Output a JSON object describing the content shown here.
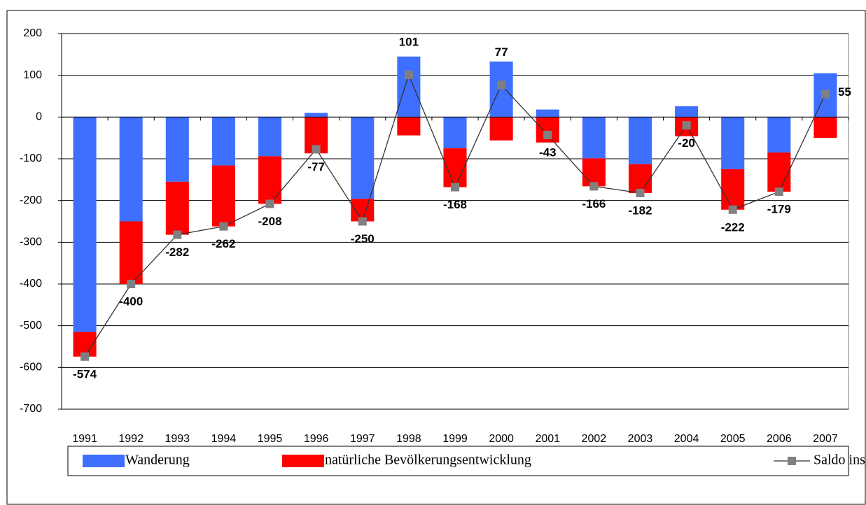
{
  "chart_data": {
    "type": "bar",
    "stacked": true,
    "categories": [
      "1991",
      "1992",
      "1993",
      "1994",
      "1995",
      "1996",
      "1997",
      "1998",
      "1999",
      "2000",
      "2001",
      "2002",
      "2003",
      "2004",
      "2005",
      "2006",
      "2007"
    ],
    "series": [
      {
        "name": "Wanderung",
        "type": "bar",
        "color": "#3f6fff",
        "values": [
          -515,
          -250,
          -155,
          -116,
          -94,
          10,
          -196,
          145,
          -75,
          133,
          18,
          -99,
          -113,
          26,
          -125,
          -85,
          105
        ]
      },
      {
        "name": "natürliche Bevölkerungsentwicklung",
        "type": "bar",
        "color": "#ff0000",
        "values": [
          -59,
          -150,
          -127,
          -146,
          -114,
          -87,
          -54,
          -44,
          -93,
          -56,
          -61,
          -67,
          -69,
          -46,
          -97,
          -94,
          -50
        ]
      },
      {
        "name": "Saldo insgesamt",
        "type": "line",
        "color": "#808080",
        "values": [
          -574,
          -400,
          -282,
          -262,
          -208,
          -77,
          -250,
          101,
          -168,
          77,
          -43,
          -166,
          -182,
          -20,
          -222,
          -179,
          55
        ]
      }
    ],
    "ylim": [
      -700,
      200
    ],
    "yticks": [
      -700,
      -600,
      -500,
      -400,
      -300,
      -200,
      -100,
      0,
      100,
      200
    ],
    "grid": true,
    "legend": "bottom"
  }
}
